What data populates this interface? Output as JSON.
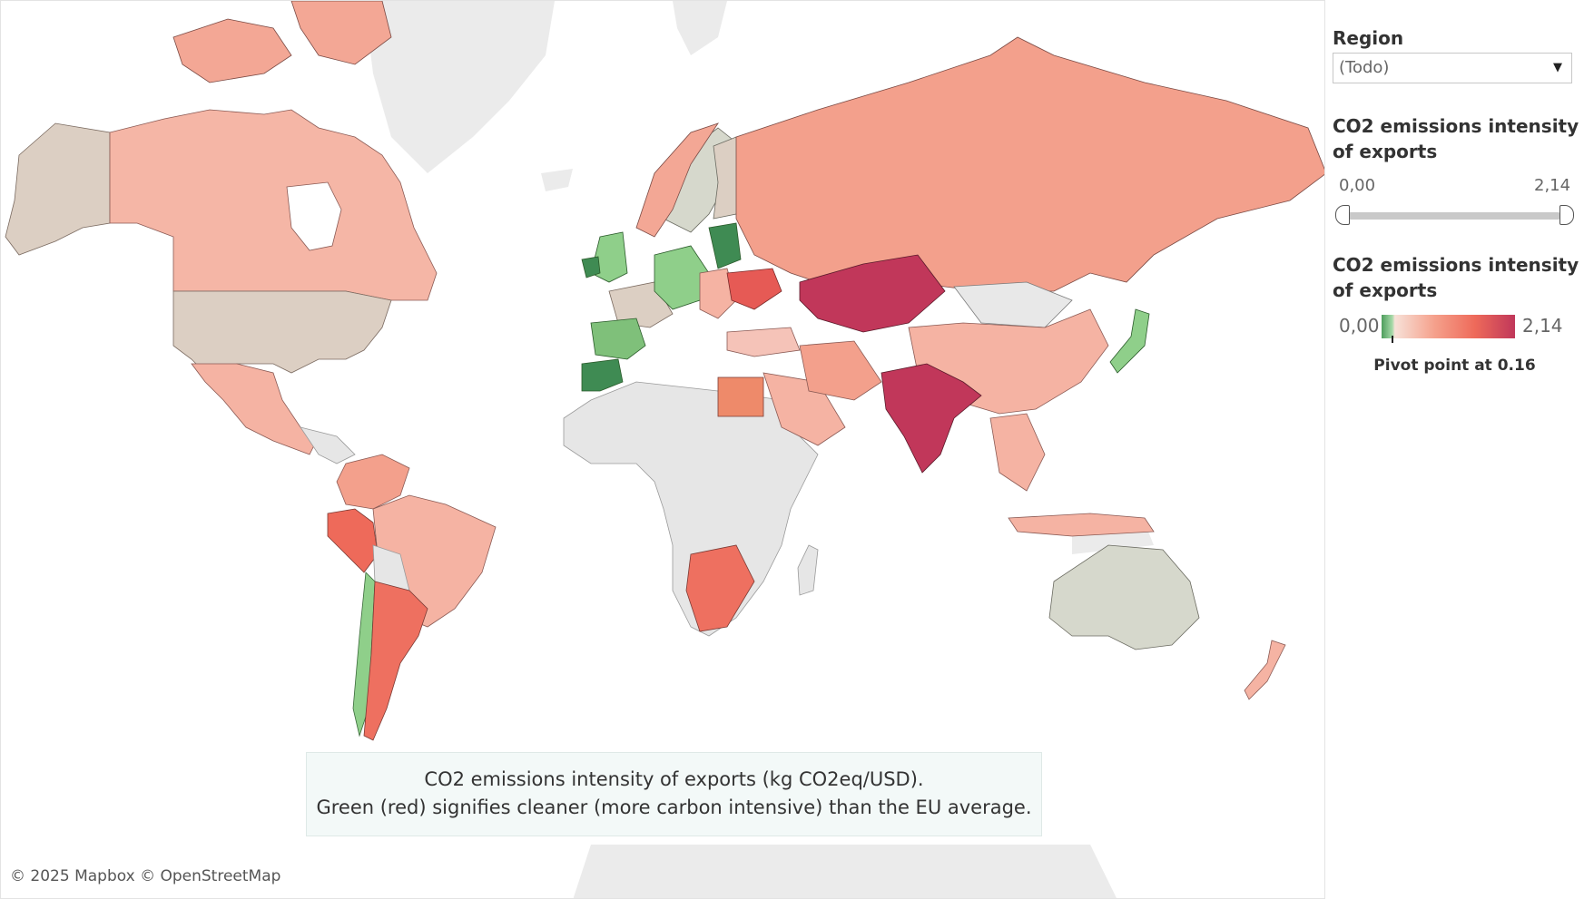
{
  "map": {
    "attribution": "© 2025 Mapbox  © OpenStreetMap",
    "caption_line1": "CO2 emissions intensity of exports (kg CO2eq/USD).",
    "caption_line2": "Green (red) signifies cleaner (more carbon intensive) than the EU average.",
    "colors": {
      "ocean": "#ffffff",
      "no_data": "#e8e8e8",
      "green_dark": "#3f8b53",
      "green_light": "#8fcf8a",
      "neutral_tan": "#dccfc3",
      "neutral_gray": "#d6d8cc",
      "salmon_light": "#f5b3a3",
      "salmon": "#f3a08c",
      "red": "#e8675e",
      "crimson": "#c1375a"
    }
  },
  "filters": {
    "region": {
      "title": "Region",
      "selected": "(Todo)"
    },
    "range": {
      "title_line1": "CO2 emissions intensity",
      "title_line2": "of exports",
      "min": "0,00",
      "max": "2,14"
    }
  },
  "legend": {
    "title_line1": "CO2 emissions intensity",
    "title_line2": "of exports",
    "min": "0,00",
    "max": "2,14",
    "pivot_note": "Pivot point at 0.16"
  }
}
